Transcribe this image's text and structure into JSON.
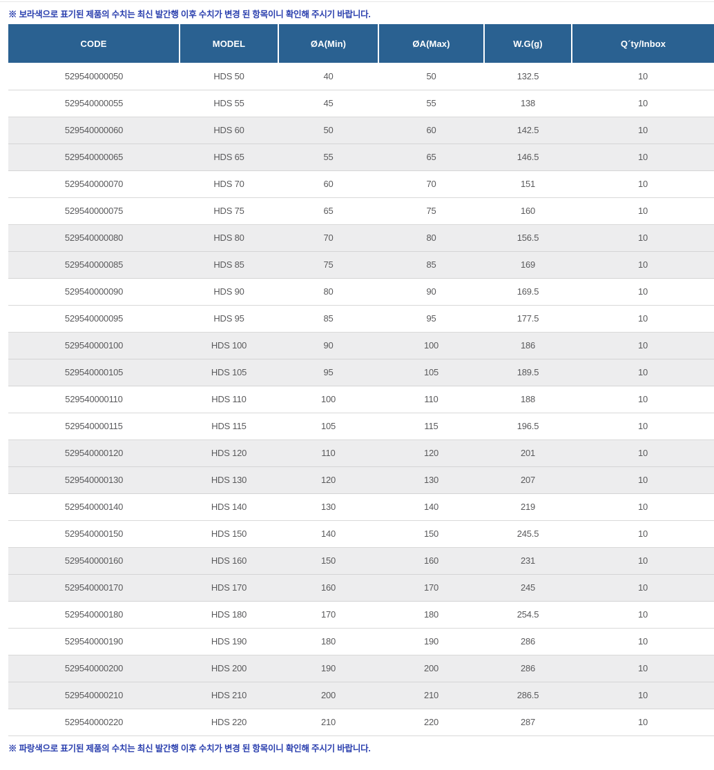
{
  "notes": {
    "top": "※ 보라색으로 표기된 제품의 수치는 최신 발간행 이후 수치가 변경 된 항목이니 확인해 주시기 바랍니다.",
    "bottom": "※ 파랑색으로 표기된 제품의 수치는 최신 발간행 이후 수치가 변경 된 항목이니 확인해 주시기 바랍니다."
  },
  "table": {
    "columns": [
      "CODE",
      "MODEL",
      "ØA(Min)",
      "ØA(Max)",
      "W.G(g)",
      "Q´ty/Inbox"
    ],
    "column_keys": [
      "code",
      "model",
      "oa-min",
      "oa-max",
      "wg",
      "qty-inbox"
    ],
    "rows": [
      [
        "529540000050",
        "HDS 50",
        "40",
        "50",
        "132.5",
        "10"
      ],
      [
        "529540000055",
        "HDS 55",
        "45",
        "55",
        "138",
        "10"
      ],
      [
        "529540000060",
        "HDS 60",
        "50",
        "60",
        "142.5",
        "10"
      ],
      [
        "529540000065",
        "HDS 65",
        "55",
        "65",
        "146.5",
        "10"
      ],
      [
        "529540000070",
        "HDS 70",
        "60",
        "70",
        "151",
        "10"
      ],
      [
        "529540000075",
        "HDS 75",
        "65",
        "75",
        "160",
        "10"
      ],
      [
        "529540000080",
        "HDS 80",
        "70",
        "80",
        "156.5",
        "10"
      ],
      [
        "529540000085",
        "HDS 85",
        "75",
        "85",
        "169",
        "10"
      ],
      [
        "529540000090",
        "HDS 90",
        "80",
        "90",
        "169.5",
        "10"
      ],
      [
        "529540000095",
        "HDS 95",
        "85",
        "95",
        "177.5",
        "10"
      ],
      [
        "529540000100",
        "HDS 100",
        "90",
        "100",
        "186",
        "10"
      ],
      [
        "529540000105",
        "HDS 105",
        "95",
        "105",
        "189.5",
        "10"
      ],
      [
        "529540000110",
        "HDS 110",
        "100",
        "110",
        "188",
        "10"
      ],
      [
        "529540000115",
        "HDS 115",
        "105",
        "115",
        "196.5",
        "10"
      ],
      [
        "529540000120",
        "HDS 120",
        "110",
        "120",
        "201",
        "10"
      ],
      [
        "529540000130",
        "HDS 130",
        "120",
        "130",
        "207",
        "10"
      ],
      [
        "529540000140",
        "HDS 140",
        "130",
        "140",
        "219",
        "10"
      ],
      [
        "529540000150",
        "HDS 150",
        "140",
        "150",
        "245.5",
        "10"
      ],
      [
        "529540000160",
        "HDS 160",
        "150",
        "160",
        "231",
        "10"
      ],
      [
        "529540000170",
        "HDS 170",
        "160",
        "170",
        "245",
        "10"
      ],
      [
        "529540000180",
        "HDS 180",
        "170",
        "180",
        "254.5",
        "10"
      ],
      [
        "529540000190",
        "HDS 190",
        "180",
        "190",
        "286",
        "10"
      ],
      [
        "529540000200",
        "HDS 200",
        "190",
        "200",
        "286",
        "10"
      ],
      [
        "529540000210",
        "HDS 210",
        "200",
        "210",
        "286.5",
        "10"
      ],
      [
        "529540000220",
        "HDS 220",
        "210",
        "220",
        "287",
        "10"
      ]
    ]
  },
  "colors": {
    "header_bg": "#2a6191",
    "note_text": "#2a3fae",
    "alt_row_bg": "#ededee",
    "cell_text": "#59595b",
    "row_divider": "#d8d8d8"
  }
}
